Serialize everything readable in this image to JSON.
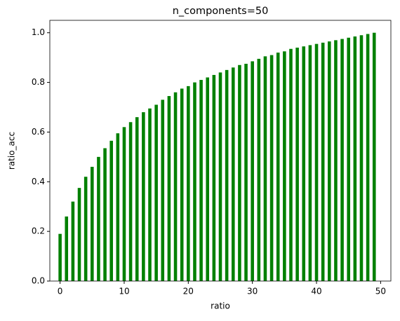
{
  "chart_data": {
    "type": "bar",
    "title": "n_components=50",
    "xlabel": "ratio",
    "ylabel": "ratio_acc",
    "x": [
      0,
      1,
      2,
      3,
      4,
      5,
      6,
      7,
      8,
      9,
      10,
      11,
      12,
      13,
      14,
      15,
      16,
      17,
      18,
      19,
      20,
      21,
      22,
      23,
      24,
      25,
      26,
      27,
      28,
      29,
      30,
      31,
      32,
      33,
      34,
      35,
      36,
      37,
      38,
      39,
      40,
      41,
      42,
      43,
      44,
      45,
      46,
      47,
      48,
      49
    ],
    "values": [
      0.19,
      0.26,
      0.32,
      0.375,
      0.42,
      0.46,
      0.5,
      0.535,
      0.565,
      0.595,
      0.62,
      0.64,
      0.66,
      0.68,
      0.695,
      0.71,
      0.73,
      0.745,
      0.76,
      0.775,
      0.785,
      0.8,
      0.81,
      0.82,
      0.83,
      0.84,
      0.85,
      0.86,
      0.87,
      0.875,
      0.885,
      0.895,
      0.905,
      0.91,
      0.92,
      0.925,
      0.935,
      0.94,
      0.945,
      0.95,
      0.955,
      0.96,
      0.965,
      0.97,
      0.975,
      0.98,
      0.985,
      0.99,
      0.995,
      1.0
    ],
    "color": "#008000",
    "xlim": [
      -1.6,
      51.6
    ],
    "xticks": [
      0,
      10,
      20,
      30,
      40,
      50
    ],
    "ylim": [
      0,
      1.05
    ],
    "yticks": [
      {
        "value": 0,
        "label": "0.0"
      },
      0.2,
      0.4,
      0.6,
      0.8,
      {
        "value": 1,
        "label": "1.0"
      }
    ]
  }
}
